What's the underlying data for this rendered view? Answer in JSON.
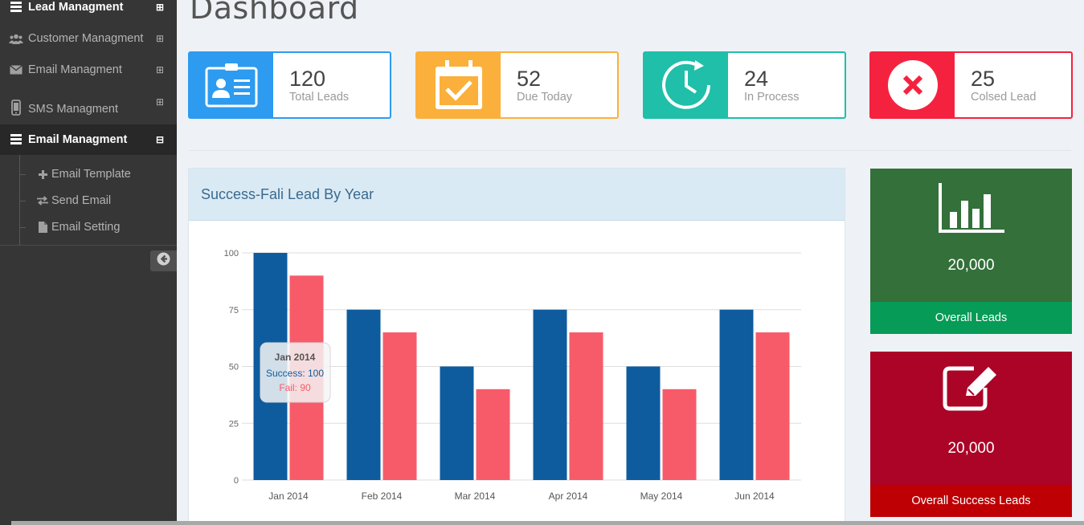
{
  "sidebar": {
    "items": [
      {
        "label": "Lead Managment",
        "icon": "server-icon",
        "toggle": "⊞"
      },
      {
        "label": "Customer Managment",
        "icon": "users-icon",
        "toggle": "⊞"
      },
      {
        "label": "Email Managment",
        "icon": "envelope-icon",
        "toggle": "⊞"
      },
      {
        "label": "SMS Managment",
        "icon": "mobile-icon",
        "toggle": "⊞"
      },
      {
        "label": "Email Managment",
        "icon": "server-icon",
        "toggle": "⊟"
      }
    ],
    "subitems": [
      {
        "label": "Email Template",
        "icon": "plus-icon"
      },
      {
        "label": "Send Email",
        "icon": "exchange-icon"
      },
      {
        "label": "Email Setting",
        "icon": "file-icon"
      }
    ]
  },
  "page": {
    "title": "Dashboard"
  },
  "stats": [
    {
      "value": "120",
      "label": "Total Leads",
      "color": "#2d9bf0",
      "icon": "contact-card-icon"
    },
    {
      "value": "52",
      "label": "Due Today",
      "color": "#fbb03b",
      "icon": "calendar-check-icon"
    },
    {
      "value": "24",
      "label": "In Process",
      "color": "#1fbfaa",
      "icon": "clock-icon"
    },
    {
      "value": "25",
      "label": "Colsed Lead",
      "color": "#f5223f",
      "icon": "close-icon"
    }
  ],
  "panel": {
    "title": "Success-Fali Lead By Year"
  },
  "chart_data": {
    "type": "bar",
    "categories": [
      "Jan 2014",
      "Feb 2014",
      "Mar 2014",
      "Apr 2014",
      "May 2014",
      "Jun 2014"
    ],
    "series": [
      {
        "name": "Success",
        "values": [
          100,
          75,
          50,
          75,
          50,
          75
        ],
        "color": "#0e5c9e"
      },
      {
        "name": "Fail",
        "values": [
          90,
          65,
          40,
          65,
          40,
          65
        ],
        "color": "#f75b69"
      }
    ],
    "yticks": [
      "0",
      "25",
      "50",
      "75",
      "100"
    ],
    "ylim": [
      0,
      100
    ],
    "grid": true,
    "tooltip": {
      "title": "Jan 2014",
      "line1": "Success: 100",
      "line2": "Fail: 90"
    }
  },
  "tiles": [
    {
      "value": "20,000",
      "label": "Overall Leads",
      "color": "#33703a",
      "foot_color": "#069b56",
      "icon": "bar-chart-icon"
    },
    {
      "value": "20,000",
      "label": "Overall Success Leads",
      "color": "#ab0427",
      "foot_color": "#be0005",
      "icon": "edit-icon"
    }
  ]
}
